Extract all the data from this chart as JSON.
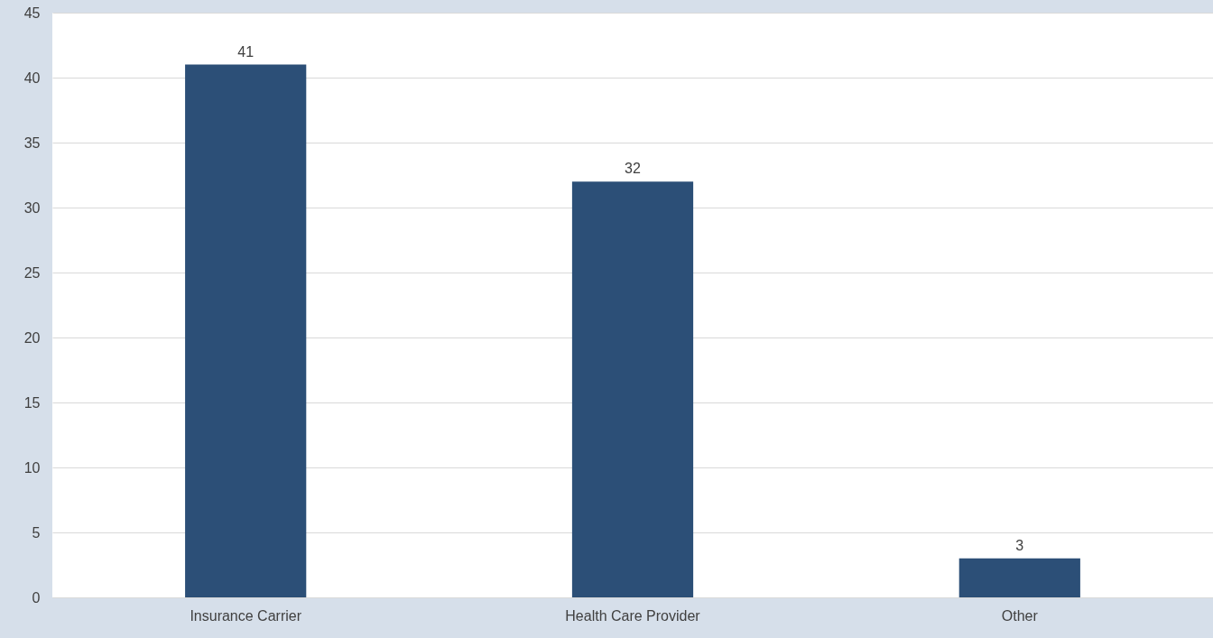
{
  "chart_data": {
    "type": "bar",
    "categories": [
      "Insurance Carrier",
      "Health Care Provider",
      "Other"
    ],
    "values": [
      41,
      32,
      3
    ],
    "color": "#2c4f77",
    "ylim": [
      0,
      45
    ],
    "yticks": [
      0,
      5,
      10,
      15,
      20,
      25,
      30,
      35,
      40,
      45
    ],
    "grid": "y",
    "data_labels": true
  }
}
